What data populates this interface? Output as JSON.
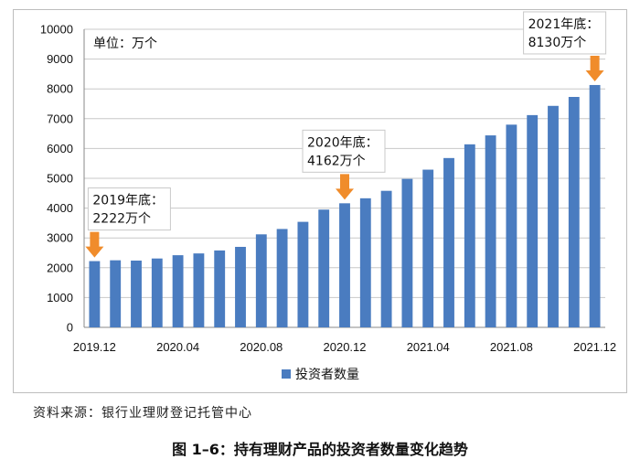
{
  "chart_data": {
    "type": "bar",
    "unit_label": "单位：万个",
    "categories": [
      "2019.12",
      "2020.01",
      "2020.02",
      "2020.03",
      "2020.04",
      "2020.05",
      "2020.06",
      "2020.07",
      "2020.08",
      "2020.09",
      "2020.10",
      "2020.11",
      "2020.12",
      "2021.01",
      "2021.02",
      "2021.03",
      "2021.04",
      "2021.05",
      "2021.06",
      "2021.07",
      "2021.08",
      "2021.09",
      "2021.10",
      "2021.11",
      "2021.12"
    ],
    "x_tick_labels": [
      "2019.12",
      "2020.04",
      "2020.08",
      "2020.12",
      "2021.04",
      "2021.08",
      "2021.12"
    ],
    "series": [
      {
        "name": "投资者数量",
        "color": "#4a7cc0",
        "values": [
          2222,
          2250,
          2240,
          2310,
          2420,
          2480,
          2580,
          2700,
          3120,
          3300,
          3540,
          3950,
          4162,
          4330,
          4580,
          4980,
          5290,
          5680,
          6140,
          6440,
          6800,
          7120,
          7430,
          7730,
          8130
        ]
      }
    ],
    "ylim": [
      0,
      10000
    ],
    "yticks": [
      0,
      1000,
      2000,
      3000,
      4000,
      5000,
      6000,
      7000,
      8000,
      9000,
      10000
    ],
    "grid": true,
    "legend_position": "bottom",
    "annotations": [
      {
        "category": "2019.12",
        "line1": "2019年底：",
        "line2": "2222万个"
      },
      {
        "category": "2020.12",
        "line1": "2020年底：",
        "line2": "4162万个"
      },
      {
        "category": "2021.12",
        "line1": "2021年底：",
        "line2": "8130万个"
      }
    ],
    "annotation_color": "#f08c2b"
  },
  "source_text": "资料来源：银行业理财登记托管中心",
  "caption": "图 1–6：持有理财产品的投资者数量变化趋势"
}
